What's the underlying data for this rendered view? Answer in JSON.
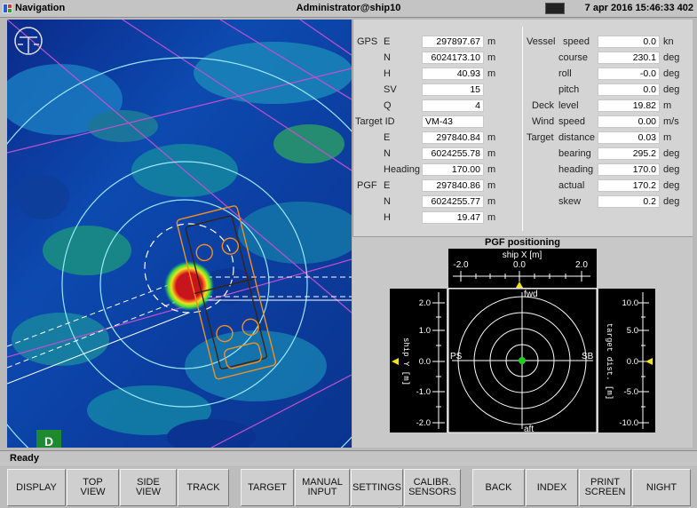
{
  "titlebar": {
    "app_title": "Navigation",
    "user": "Administrator@ship10",
    "clock": "7 apr 2016  15:46:33  402"
  },
  "map": {
    "badge": "D"
  },
  "gps": {
    "label": "GPS",
    "rows": [
      {
        "label": "E",
        "value": "297897.67",
        "unit": "m"
      },
      {
        "label": "N",
        "value": "6024173.10",
        "unit": "m"
      },
      {
        "label": "H",
        "value": "40.93",
        "unit": "m"
      },
      {
        "label": "SV",
        "value": "15",
        "unit": ""
      },
      {
        "label": "Q",
        "value": "4",
        "unit": ""
      }
    ]
  },
  "target": {
    "label": "Target ID",
    "id": "VM-43",
    "rows": [
      {
        "label": "E",
        "value": "297840.84",
        "unit": "m"
      },
      {
        "label": "N",
        "value": "6024255.78",
        "unit": "m"
      },
      {
        "label": "Heading",
        "value": "170.00",
        "unit": "m"
      }
    ]
  },
  "pgf_data": {
    "label": "PGF",
    "rows": [
      {
        "label": "E",
        "value": "297840.86",
        "unit": "m"
      },
      {
        "label": "N",
        "value": "6024255.77",
        "unit": "m"
      },
      {
        "label": "H",
        "value": "19.47",
        "unit": "m"
      }
    ]
  },
  "vessel": {
    "label": "Vessel",
    "rows": [
      {
        "label": "speed",
        "value": "0.0",
        "unit": "kn"
      },
      {
        "label": "course",
        "value": "230.1",
        "unit": "deg"
      },
      {
        "label": "roll",
        "value": "-0.0",
        "unit": "deg"
      },
      {
        "label": "pitch",
        "value": "0.0",
        "unit": "deg"
      }
    ]
  },
  "deck": {
    "label": "Deck",
    "sub": "level",
    "value": "19.82",
    "unit": "m"
  },
  "wind": {
    "label": "Wind",
    "sub": "speed",
    "value": "0.00",
    "unit": "m/s"
  },
  "target_dist": {
    "label": "Target",
    "rows": [
      {
        "label": "distance",
        "value": "0.03",
        "unit": "m"
      },
      {
        "label": "bearing",
        "value": "295.2",
        "unit": "deg"
      },
      {
        "label": "heading",
        "value": "170.0",
        "unit": "deg"
      },
      {
        "label": "actual",
        "value": "170.2",
        "unit": "deg"
      },
      {
        "label": "skew",
        "value": "0.2",
        "unit": "deg"
      }
    ]
  },
  "pgf_positioning": {
    "title": "PGF positioning",
    "x_axis_label": "ship X [m]",
    "x_ticks": [
      "-2.0",
      "0.0",
      "2.0"
    ],
    "y_axis_label": "ship Y [m]",
    "y_ticks": [
      "2.0",
      "1.0",
      "0.0",
      "-1.0",
      "-2.0"
    ],
    "dist_axis_label": "target dist. [m]",
    "dist_ticks": [
      "10.0",
      "5.0",
      "0.0",
      "-5.0",
      "-10.0"
    ],
    "fwd": "fwd",
    "aft": "aft",
    "ps": "PS",
    "sb": "SB",
    "position": {
      "x": 0.0,
      "y": 0.0
    }
  },
  "status": "Ready",
  "buttons": [
    {
      "name": "display-button",
      "label": "DISPLAY"
    },
    {
      "name": "top-view-button",
      "label": "TOP\nVIEW"
    },
    {
      "name": "side-view-button",
      "label": "SIDE\nVIEW"
    },
    {
      "name": "track-button",
      "label": "TRACK"
    },
    {
      "name": "target-button",
      "label": "TARGET"
    },
    {
      "name": "manual-input-button",
      "label": "MANUAL\nINPUT"
    },
    {
      "name": "settings-button",
      "label": "SETTINGS"
    },
    {
      "name": "calibr-sensors-button",
      "label": "CALIBR.\nSENSORS"
    },
    {
      "name": "back-button",
      "label": "BACK"
    },
    {
      "name": "index-button",
      "label": "INDEX"
    },
    {
      "name": "print-screen-button",
      "label": "PRINT\nSCREEN"
    },
    {
      "name": "night-button",
      "label": "NIGHT"
    }
  ]
}
